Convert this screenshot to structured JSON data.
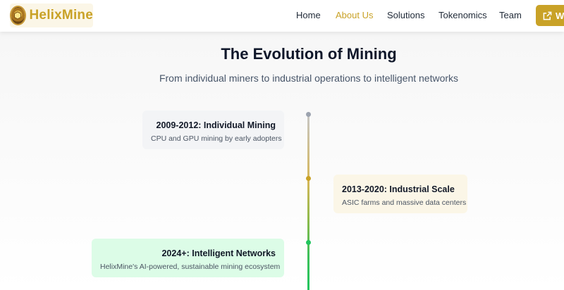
{
  "header": {
    "brand": "HelixMine",
    "nav": [
      {
        "label": "Home",
        "active": false
      },
      {
        "label": "About Us",
        "active": true
      },
      {
        "label": "Solutions",
        "active": false
      },
      {
        "label": "Tokenomics",
        "active": false
      },
      {
        "label": "Team",
        "active": false
      }
    ],
    "cta_label": "W"
  },
  "hero": {
    "title": "The Evolution of Mining",
    "subtitle": "From individual miners to industrial operations to intelligent networks"
  },
  "timeline": [
    {
      "title": "2009-2012: Individual Mining",
      "description": "CPU and GPU mining by early adopters",
      "side": "left",
      "color": "#9ca3af",
      "background": "#f3f4f6"
    },
    {
      "title": "2013-2020: Industrial Scale",
      "description": "ASIC farms and massive data centers",
      "side": "right",
      "color": "#c9a227",
      "background": "#fbf6e7"
    },
    {
      "title": "2024+: Intelligent Networks",
      "description": "HelixMine's AI-powered, sustainable mining ecosystem",
      "side": "left",
      "color": "#22c55e",
      "background": "#dcfce7"
    }
  ],
  "colors": {
    "accent": "#c9a227",
    "text": "#1f2937"
  }
}
